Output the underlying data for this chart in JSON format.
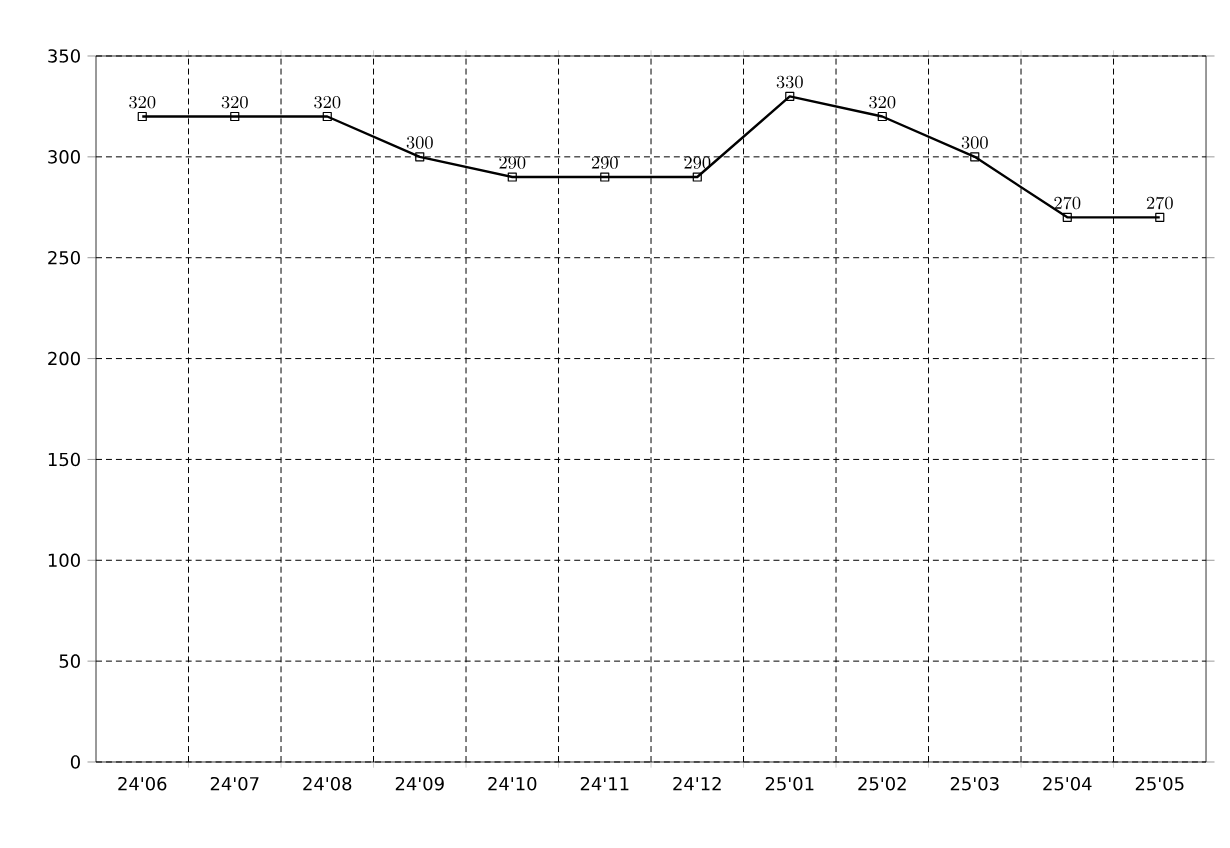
{
  "chart_data": {
    "type": "line",
    "categories": [
      "24'06",
      "24'07",
      "24'08",
      "24'09",
      "24'10",
      "24'11",
      "24'12",
      "25'01",
      "25'02",
      "25'03",
      "25'04",
      "25'05"
    ],
    "values": [
      320,
      320,
      320,
      300,
      290,
      290,
      290,
      330,
      320,
      300,
      270,
      270
    ],
    "color": "#000000",
    "ylim": [
      0,
      350
    ],
    "yticks": [
      0,
      50,
      100,
      150,
      200,
      250,
      300,
      350
    ],
    "grid": true,
    "marker": "square",
    "line_style": "solid",
    "data_labels": true
  }
}
